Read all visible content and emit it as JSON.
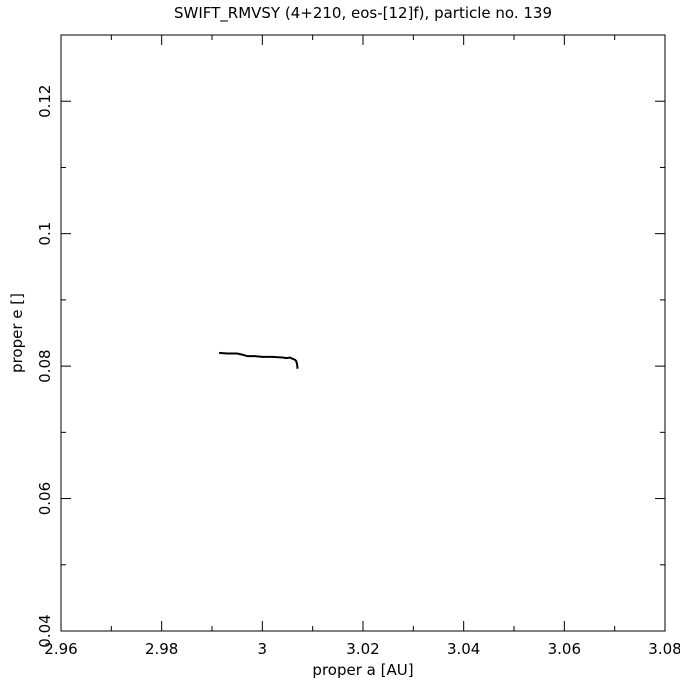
{
  "chart_data": {
    "type": "line",
    "title": "SWIFT_RMVSY (4+210, eos-[12]f), particle no. 139",
    "x_label": "proper a [AU]",
    "y_label": "proper e []",
    "x": [
      2.9914,
      2.993,
      2.995,
      2.9962,
      2.997,
      2.9985,
      3.0,
      3.002,
      3.004,
      3.0048,
      3.0055,
      3.006,
      3.0064,
      3.0067,
      3.0069,
      3.007
    ],
    "series": [
      {
        "name": "particle 139",
        "color": "#000000",
        "values": [
          0.082,
          0.0819,
          0.0819,
          0.0817,
          0.0815,
          0.0815,
          0.0814,
          0.0814,
          0.0813,
          0.0812,
          0.0813,
          0.0811,
          0.081,
          0.0808,
          0.0803,
          0.0796
        ]
      }
    ],
    "xlim": [
      2.96,
      3.08
    ],
    "ylim": [
      0.04,
      0.13
    ],
    "xticks": [
      2.96,
      2.98,
      3,
      3.02,
      3.04,
      3.06,
      3.08
    ],
    "yticks": [
      0.04,
      0.06,
      0.08,
      0.1,
      0.12
    ],
    "xminorticks": [
      2.97,
      2.99,
      3.01,
      3.03,
      3.05,
      3.07
    ],
    "yminorticks": [
      0.05,
      0.07,
      0.09,
      0.11,
      0.13
    ],
    "grid": false
  }
}
